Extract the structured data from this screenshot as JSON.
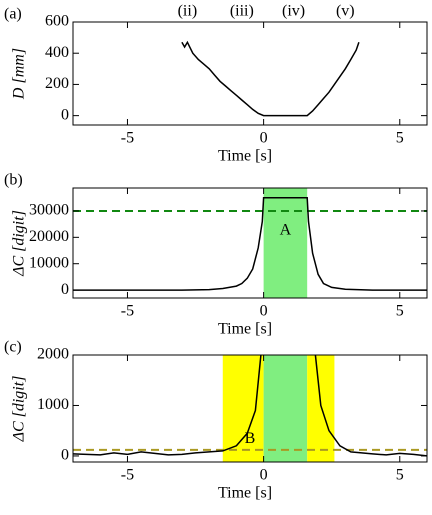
{
  "chart_data": [
    {
      "type": "line",
      "panel_label": "(a)",
      "ylabel": "D [mm]",
      "xlabel": "Time [s]",
      "xlim": [
        -7,
        6
      ],
      "xticks": [
        -5,
        0,
        5
      ],
      "ylim": [
        -60,
        600
      ],
      "yticks": [
        0,
        200,
        400,
        600
      ],
      "top_labels": [
        {
          "text": "(ii)",
          "x": -2.8
        },
        {
          "text": "(iii)",
          "x": -0.8
        },
        {
          "text": "(iv)",
          "x": 1.1
        },
        {
          "text": "(v)",
          "x": 3.0
        }
      ],
      "series": [
        {
          "color": "#000000",
          "x": [
            -3,
            -2.9,
            -2.8,
            -2.6,
            -2.4,
            -2.2,
            -2.0,
            -1.8,
            -1.6,
            -1.4,
            -1.2,
            -1.0,
            -0.8,
            -0.6,
            -0.4,
            -0.2,
            0,
            0.5,
            1.0,
            1.6,
            1.8,
            2.0,
            2.2,
            2.4,
            2.6,
            2.8,
            3.0,
            3.2,
            3.4,
            3.5
          ],
          "values": [
            470,
            440,
            470,
            400,
            360,
            330,
            300,
            260,
            220,
            190,
            160,
            130,
            100,
            70,
            40,
            15,
            0,
            0,
            0,
            0,
            30,
            70,
            110,
            150,
            200,
            250,
            300,
            360,
            420,
            470
          ]
        }
      ]
    },
    {
      "type": "line",
      "panel_label": "(b)",
      "ylabel": "ΔC [digit]",
      "xlabel": "Time [s]",
      "xlim": [
        -7,
        6
      ],
      "xticks": [
        -5,
        0,
        5
      ],
      "ylim": [
        -3000,
        38700
      ],
      "yticks": [
        0,
        10000,
        20000,
        30000
      ],
      "spans": [
        {
          "start": 0,
          "end": 1.6,
          "color": "#80ee80"
        }
      ],
      "hlines": [
        {
          "value": 30000,
          "color": "#118811"
        }
      ],
      "annotations": [
        {
          "text": "A",
          "x": 0.8,
          "y": 22500
        }
      ],
      "series": [
        {
          "color": "#000000",
          "x": [
            -7,
            -3,
            -2,
            -1.5,
            -1,
            -0.8,
            -0.6,
            -0.4,
            -0.2,
            -0.05,
            0,
            1.6,
            1.65,
            1.8,
            2.0,
            2.2,
            2.5,
            3,
            4,
            6
          ],
          "values": [
            0,
            0,
            200,
            600,
            1500,
            2500,
            4500,
            8000,
            16000,
            26000,
            35000,
            35000,
            26000,
            14000,
            6000,
            2500,
            1000,
            300,
            0,
            0
          ]
        }
      ]
    },
    {
      "type": "line",
      "panel_label": "(c)",
      "ylabel": "ΔC [digit]",
      "xlabel": "Time [s]",
      "xlim": [
        -7,
        6
      ],
      "xticks": [
        -5,
        0,
        5
      ],
      "ylim": [
        -120,
        2000
      ],
      "yticks": [
        0,
        1000,
        2000
      ],
      "spans": [
        {
          "start": -1.5,
          "end": 0,
          "color": "#ffff00"
        },
        {
          "start": 0,
          "end": 1.6,
          "color": "#80ee80"
        },
        {
          "start": 1.6,
          "end": 2.6,
          "color": "#ffff00"
        }
      ],
      "hlines": [
        {
          "value": 120,
          "color": "#aa9922"
        }
      ],
      "annotations": [
        {
          "text": "B",
          "x": -0.5,
          "y": 330
        }
      ],
      "series": [
        {
          "color": "#000000",
          "x": [
            -7,
            -6,
            -5.5,
            -5,
            -4.5,
            -4,
            -3.5,
            -3,
            -2.5,
            -2,
            -1.5,
            -1,
            -0.6,
            -0.3,
            -0.1,
            0.9,
            1.9,
            2.1,
            2.4,
            2.8,
            3.2,
            3.6,
            4,
            4.5,
            5,
            5.5,
            6
          ],
          "values": [
            40,
            20,
            60,
            30,
            80,
            50,
            20,
            30,
            60,
            80,
            100,
            200,
            450,
            900,
            2000,
            null,
            2000,
            1000,
            500,
            200,
            80,
            60,
            40,
            20,
            50,
            30,
            0
          ]
        }
      ]
    }
  ]
}
